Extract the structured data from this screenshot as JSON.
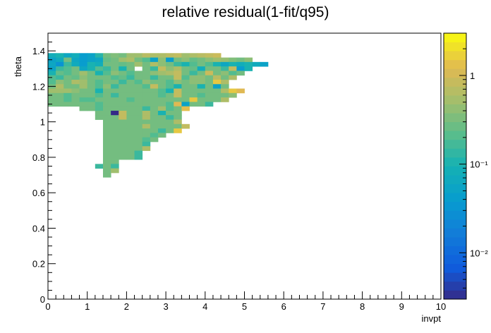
{
  "chart_data": {
    "type": "heatmap",
    "title": "relative residual(1-fit/q95)",
    "xlabel": "invpt",
    "ylabel": "theta",
    "xlim": [
      0,
      10
    ],
    "ylim": [
      0,
      1.5
    ],
    "x_ticks": [
      "0",
      "1",
      "2",
      "3",
      "4",
      "5",
      "6",
      "7",
      "8",
      "9",
      "10"
    ],
    "y_ticks": [
      "0",
      "0.2",
      "0.4",
      "0.6",
      "0.8",
      "1",
      "1.2",
      "1.4"
    ],
    "colorbar": {
      "scale": "log",
      "range": [
        0.003,
        3
      ],
      "tick_labels": [
        "10⁻²",
        "10⁻¹",
        "1"
      ],
      "tick_values": [
        0.01,
        0.1,
        1
      ]
    },
    "bin_size": {
      "invpt": 0.2,
      "theta": 0.025
    },
    "rows": [
      {
        "theta": 1.375,
        "invpt": 0.1,
        "values": [
          0.08,
          0.1,
          0.06,
          0.08,
          0.04,
          0.05,
          0.12,
          0.3,
          0.35,
          0.3,
          0.5,
          0.5,
          0.7,
          0.6,
          0.6,
          0.7,
          0.8,
          0.5,
          0.6,
          0.7,
          0.8,
          0.9
        ]
      },
      {
        "theta": 1.35,
        "invpt": 0.1,
        "values": [
          0.05,
          0.07,
          0.3,
          0.06,
          0.04,
          0.05,
          0.06,
          0.25,
          0.3,
          0.5,
          0.6,
          0.3,
          0.2,
          0.05,
          0.4,
          0.04,
          0.3,
          0.4,
          0.25,
          0.3,
          0.4,
          0.5,
          0.45,
          0.35,
          0.3,
          0.4
        ]
      },
      {
        "theta": 1.325,
        "invpt": 0.1,
        "values": [
          0.06,
          0.03,
          0.15,
          0.07,
          0.04,
          0.1,
          0.08,
          0.3,
          0.3,
          0.25,
          0.3,
          0.5,
          0.3,
          0.6,
          0.4,
          0.3,
          0.15,
          0.1,
          0.2,
          0.3,
          0.2,
          0.1,
          0.06,
          0.1,
          0.08,
          0.1,
          0.07,
          0.05
        ]
      },
      {
        "theta": 1.3,
        "invpt": 0.1,
        "values": [
          0.05,
          0.15,
          0.2,
          0.3,
          0.06,
          0.1,
          0.2,
          0.15,
          0.3,
          0.1,
          0.3,
          null,
          0.3,
          0.15,
          0.8,
          0.4,
          0.6,
          0.3,
          0.25,
          0.08,
          0.3,
          0.3,
          0.15,
          0.8,
          0.04,
          0.1
        ]
      },
      {
        "theta": 1.275,
        "invpt": 0.1,
        "values": [
          0.1,
          0.25,
          0.2,
          0.3,
          0.5,
          0.3,
          0.1,
          0.2,
          0.4,
          0.3,
          0.2,
          0.3,
          0.3,
          0.4,
          0.5,
          0.6,
          0.8,
          0.3,
          0.15,
          0.3,
          0.9,
          0.3,
          0.4,
          0.2,
          0.3
        ]
      },
      {
        "theta": 1.25,
        "invpt": 0.1,
        "values": [
          0.2,
          0.15,
          0.3,
          0.25,
          0.4,
          0.3,
          0.3,
          0.3,
          0.2,
          0.25,
          0.15,
          0.3,
          0.3,
          0.15,
          0.3,
          0.3,
          0.8,
          0.2,
          0.4,
          0.4,
          0.3,
          0.7,
          0.3,
          0.6
        ]
      },
      {
        "theta": 1.225,
        "invpt": 0.1,
        "values": [
          0.2,
          0.4,
          0.3,
          0.6,
          0.5,
          0.3,
          0.2,
          0.3,
          0.3,
          0.15,
          0.3,
          0.2,
          0.4,
          0.3,
          0.3,
          0.2,
          0.4,
          0.3,
          0.4,
          0.4,
          0.3,
          1.5,
          0.6
        ]
      },
      {
        "theta": 1.2,
        "invpt": 0.1,
        "values": [
          0.3,
          0.6,
          0.3,
          0.3,
          0.5,
          0.3,
          0.2,
          0.4,
          0.15,
          0.3,
          0.3,
          0.3,
          0.2,
          0.8,
          0.3,
          0.2,
          0.1,
          0.3,
          0.3,
          0.1,
          0.3,
          0.05,
          0.3
        ]
      },
      {
        "theta": 1.175,
        "invpt": 0.1,
        "values": [
          0.5,
          0.5,
          0.5,
          0.4,
          0.3,
          0.3,
          0.1,
          0.3,
          0.3,
          0.3,
          0.3,
          0.3,
          0.3,
          0.3,
          0.2,
          0.1,
          0.8,
          0.3,
          0.3,
          0.3,
          0.3,
          0.3,
          0.6,
          1.5,
          1.2
        ]
      },
      {
        "theta": 1.15,
        "invpt": 0.1,
        "values": [
          0.3,
          0.3,
          0.2,
          0.3,
          0.3,
          0.3,
          0.2,
          0.3,
          0.15,
          0.3,
          0.3,
          0.3,
          0.3,
          0.3,
          0.2,
          0.3,
          0.8,
          0.3,
          0.3,
          0.2,
          0.3,
          0.3,
          0.3,
          0.4
        ]
      },
      {
        "theta": 1.125,
        "invpt": 0.1,
        "values": [
          0.3,
          0.3,
          0.2,
          0.3,
          0.2,
          0.2,
          0.3,
          0.3,
          0.3,
          0.3,
          0.2,
          0.3,
          0.3,
          0.3,
          0.3,
          0.3,
          0.3,
          0.3,
          1.5,
          0.3,
          0.3,
          0.3,
          0.6
        ]
      },
      {
        "theta": 1.1,
        "invpt": 0.1,
        "values": [
          0.3,
          0.3,
          0.3,
          0.3,
          0.3,
          0.3,
          0.2,
          0.3,
          0.3,
          0.3,
          0.3,
          0.3,
          0.3,
          0.3,
          0.3,
          0.2,
          1.2,
          0.05,
          0.3,
          0.3,
          0.15
        ]
      },
      {
        "theta": 1.075,
        "invpt": 0.9,
        "values": [
          0.3,
          0.3,
          0.2,
          0.3,
          0.3,
          0.3,
          0.3,
          0.3,
          0.15,
          0.3,
          0.5,
          0.2,
          0.3,
          1.3
        ]
      },
      {
        "theta": 1.05,
        "invpt": 1.3,
        "values": [
          0.3,
          0.3,
          0.003,
          0.8,
          0.3,
          0.3,
          0.6,
          0.3,
          0.1,
          0.3,
          0.3
        ]
      },
      {
        "theta": 1.025,
        "invpt": 1.3,
        "values": [
          0.3,
          0.3,
          0.3,
          0.8,
          0.3,
          0.3,
          0.6,
          0.3,
          0.3,
          0.15,
          0.3
        ]
      },
      {
        "theta": 1.0,
        "invpt": 1.5,
        "values": [
          0.3,
          0.3,
          0.3,
          0.3,
          0.3,
          0.3,
          0.3,
          0.3,
          0.3,
          0.6
        ]
      },
      {
        "theta": 0.975,
        "invpt": 1.5,
        "values": [
          0.3,
          0.3,
          0.3,
          0.3,
          0.3,
          0.6,
          0.3,
          0.3,
          0.3,
          0.3,
          0.8
        ]
      },
      {
        "theta": 0.95,
        "invpt": 1.5,
        "values": [
          0.3,
          0.3,
          0.3,
          0.3,
          0.3,
          0.3,
          0.3,
          0.15,
          0.3,
          1.5
        ]
      },
      {
        "theta": 0.925,
        "invpt": 1.5,
        "values": [
          0.3,
          0.3,
          0.3,
          0.3,
          0.3,
          0.3,
          0.2,
          0.3
        ]
      },
      {
        "theta": 0.9,
        "invpt": 1.5,
        "values": [
          0.3,
          0.3,
          0.3,
          0.3,
          0.3,
          0.2,
          0.3
        ]
      },
      {
        "theta": 0.875,
        "invpt": 1.5,
        "values": [
          0.3,
          0.3,
          0.3,
          0.3,
          0.3,
          0.15
        ]
      },
      {
        "theta": 0.85,
        "invpt": 1.5,
        "values": [
          0.3,
          0.3,
          0.3,
          0.3,
          0.3,
          0.6
        ]
      },
      {
        "theta": 0.825,
        "invpt": 1.5,
        "values": [
          0.3,
          0.3,
          0.3,
          0.3,
          0.15
        ]
      },
      {
        "theta": 0.8,
        "invpt": 1.5,
        "values": [
          0.3,
          0.3,
          0.3,
          0.3,
          0.15
        ]
      },
      {
        "theta": 0.775,
        "invpt": 1.5,
        "values": [
          0.3,
          0.3
        ]
      },
      {
        "theta": 0.75,
        "invpt": 1.3,
        "values": [
          0.15,
          0.3,
          0.15
        ]
      },
      {
        "theta": 0.725,
        "invpt": 1.5,
        "values": [
          0.3,
          0.5
        ]
      },
      {
        "theta": 0.7,
        "invpt": 1.5,
        "values": [
          0.3
        ]
      }
    ]
  }
}
